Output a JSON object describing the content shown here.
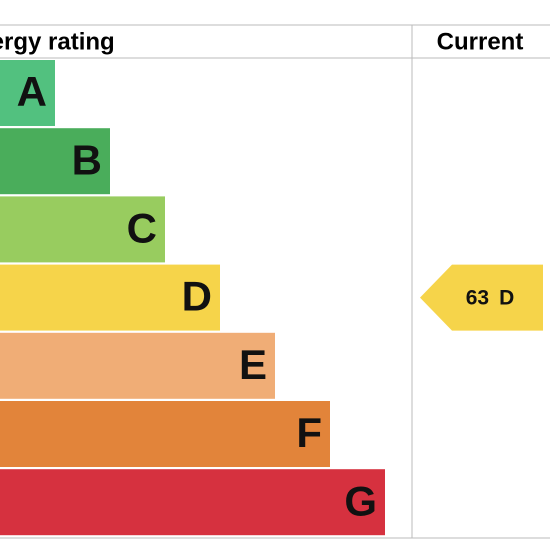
{
  "header": {
    "title": "Energy rating",
    "current": "Current"
  },
  "bands": [
    {
      "letter": "A",
      "color": "#52c17f"
    },
    {
      "letter": "B",
      "color": "#4aad5b"
    },
    {
      "letter": "C",
      "color": "#98cc5f"
    },
    {
      "letter": "D",
      "color": "#f6d44a"
    },
    {
      "letter": "E",
      "color": "#f0ad76"
    },
    {
      "letter": "F",
      "color": "#e2843a"
    },
    {
      "letter": "G",
      "color": "#d6313f"
    }
  ],
  "current": {
    "score": 63,
    "rating": "D",
    "color": "#f6d44a"
  }
}
